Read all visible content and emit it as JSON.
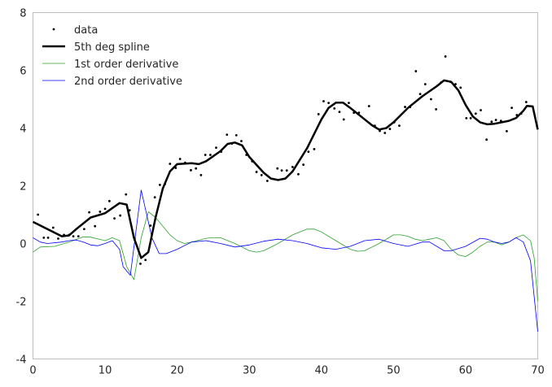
{
  "chart_data": {
    "type": "line",
    "title": "",
    "xlabel": "",
    "ylabel": "",
    "xlim": [
      0,
      70
    ],
    "ylim": [
      -4,
      8
    ],
    "xticks": [
      0,
      10,
      20,
      30,
      40,
      50,
      60,
      70
    ],
    "yticks": [
      -4,
      -2,
      0,
      2,
      4,
      6,
      8
    ],
    "grid": false,
    "legend_position": "top-left",
    "series": [
      {
        "name": "data",
        "kind": "scatter",
        "color": "#000000",
        "x": [
          0.7,
          1.5,
          2.1,
          2.8,
          3.5,
          4.3,
          5.0,
          5.6,
          6.3,
          7.1,
          7.8,
          8.6,
          9.3,
          10.0,
          10.6,
          11.3,
          12.1,
          12.9,
          13.4,
          14.1,
          14.9,
          15.6,
          16.3,
          16.9,
          17.6,
          18.3,
          19.0,
          19.8,
          20.4,
          21.1,
          21.9,
          22.6,
          23.3,
          23.9,
          24.6,
          25.4,
          26.1,
          26.9,
          27.6,
          28.2,
          28.9,
          29.6,
          30.4,
          31.0,
          31.7,
          32.5,
          33.9,
          34.5,
          35.2,
          36.0,
          36.8,
          37.5,
          38.2,
          39.0,
          39.6,
          40.3,
          41.0,
          41.8,
          42.5,
          43.1,
          43.8,
          44.5,
          45.2,
          46.6,
          47.4,
          48.1,
          48.8,
          49.5,
          50.1,
          50.8,
          51.6,
          52.3,
          53.1,
          53.7,
          54.4,
          55.2,
          55.9,
          56.6,
          57.2,
          57.9,
          58.6,
          59.3,
          60.1,
          60.7,
          61.4,
          62.1,
          62.9,
          63.6,
          64.2,
          64.9,
          65.7,
          66.4,
          67.1,
          67.7,
          68.4
        ],
        "y": [
          1.0,
          0.2,
          0.2,
          0.55,
          0.17,
          0.3,
          0.3,
          0.25,
          0.25,
          0.5,
          1.08,
          0.6,
          1.1,
          1.2,
          1.47,
          0.87,
          0.97,
          1.7,
          1.15,
          0.17,
          -0.7,
          -0.57,
          0.62,
          1.6,
          2.03,
          2.06,
          2.76,
          2.62,
          2.93,
          2.8,
          2.54,
          2.6,
          2.37,
          3.07,
          3.07,
          3.32,
          3.18,
          3.77,
          3.46,
          3.75,
          3.55,
          3.07,
          2.85,
          2.48,
          2.37,
          2.17,
          2.6,
          2.53,
          2.53,
          2.65,
          2.4,
          2.73,
          3.18,
          3.27,
          4.48,
          4.93,
          4.87,
          4.68,
          4.56,
          4.3,
          4.87,
          4.53,
          4.53,
          4.76,
          4.08,
          3.9,
          3.83,
          3.97,
          4.2,
          4.08,
          4.73,
          4.73,
          5.97,
          5.18,
          5.52,
          5.0,
          4.65,
          5.58,
          6.48,
          5.6,
          5.52,
          5.4,
          4.34,
          4.34,
          4.5,
          4.62,
          3.6,
          4.22,
          4.28,
          4.25,
          3.89,
          4.7,
          4.45,
          4.5,
          4.9
        ]
      },
      {
        "name": "5th deg spline",
        "kind": "line",
        "color": "#000000",
        "x": [
          0,
          2,
          4,
          5,
          6,
          8,
          10,
          12,
          13,
          14,
          15,
          16,
          17,
          18,
          19,
          20,
          22,
          23,
          24,
          26,
          27,
          28,
          29,
          30,
          32,
          33,
          34,
          35,
          36,
          38,
          40,
          41,
          42,
          43,
          44,
          46,
          47,
          48,
          49,
          50,
          52,
          54,
          56,
          57,
          58,
          59,
          60,
          61,
          62,
          63,
          64,
          66,
          67,
          68,
          68.5,
          69.3,
          70
        ],
        "y": [
          0.75,
          0.5,
          0.25,
          0.28,
          0.5,
          0.9,
          1.05,
          1.4,
          1.35,
          0.2,
          -0.5,
          -0.3,
          0.9,
          1.9,
          2.5,
          2.75,
          2.78,
          2.75,
          2.85,
          3.2,
          3.45,
          3.5,
          3.4,
          3.0,
          2.45,
          2.25,
          2.2,
          2.25,
          2.5,
          3.3,
          4.3,
          4.7,
          4.88,
          4.88,
          4.7,
          4.3,
          4.1,
          3.95,
          4.0,
          4.2,
          4.7,
          5.1,
          5.45,
          5.65,
          5.6,
          5.3,
          4.8,
          4.4,
          4.2,
          4.13,
          4.15,
          4.25,
          4.35,
          4.6,
          4.77,
          4.75,
          3.95
        ]
      },
      {
        "name": "1st order derivative",
        "kind": "line",
        "color": "#2ca02c",
        "x": [
          0,
          1,
          3,
          5,
          7,
          8,
          10,
          11,
          12,
          13,
          14,
          15,
          16,
          17,
          19,
          20,
          21,
          22,
          24,
          25,
          26,
          28,
          30,
          31,
          32,
          34,
          36,
          38,
          39,
          40,
          42,
          44,
          45,
          46,
          48,
          50,
          51,
          52,
          53,
          54,
          55,
          56,
          57,
          58,
          59,
          60,
          61,
          62,
          63,
          64,
          65,
          66,
          67,
          68,
          69,
          69.5,
          70
        ],
        "y": [
          -0.3,
          -0.12,
          -0.1,
          0.05,
          0.23,
          0.22,
          0.1,
          0.2,
          0.1,
          -0.8,
          -1.25,
          0.2,
          1.1,
          0.9,
          0.3,
          0.1,
          0,
          0.05,
          0.18,
          0.2,
          0.2,
          0,
          -0.25,
          -0.3,
          -0.25,
          0,
          0.3,
          0.5,
          0.5,
          0.4,
          0.1,
          -0.2,
          -0.27,
          -0.25,
          0,
          0.3,
          0.3,
          0.25,
          0.15,
          0.1,
          0.15,
          0.2,
          0.1,
          -0.2,
          -0.4,
          -0.45,
          -0.3,
          -0.1,
          0.05,
          0.05,
          -0.05,
          0.05,
          0.2,
          0.3,
          0.1,
          -0.5,
          -2.0
        ]
      },
      {
        "name": "2nd order derivative",
        "kind": "line",
        "color": "#0000ff",
        "x": [
          0,
          1,
          2,
          4,
          5,
          6,
          7,
          8,
          9,
          10,
          11,
          12,
          12.5,
          13.5,
          15,
          16.5,
          17.5,
          18.5,
          20,
          22,
          24,
          26,
          28,
          30,
          32,
          34,
          36,
          38,
          40,
          42,
          44,
          46,
          48,
          50,
          52,
          54,
          55,
          57,
          58,
          60,
          62,
          63,
          64,
          65,
          66,
          67,
          68,
          69,
          70
        ],
        "y": [
          0.2,
          0.05,
          0,
          0.05,
          0.1,
          0.12,
          0.05,
          -0.05,
          -0.08,
          0,
          0.1,
          -0.2,
          -0.8,
          -1.1,
          1.85,
          0.2,
          -0.35,
          -0.35,
          -0.2,
          0.05,
          0.1,
          0,
          -0.12,
          -0.05,
          0.08,
          0.15,
          0.1,
          0,
          -0.15,
          -0.2,
          -0.1,
          0.1,
          0.15,
          0,
          -0.1,
          0.05,
          0.05,
          -0.25,
          -0.25,
          -0.1,
          0.18,
          0.15,
          0.05,
          0,
          0.05,
          0.2,
          0.05,
          -0.6,
          -3.05
        ]
      }
    ]
  }
}
